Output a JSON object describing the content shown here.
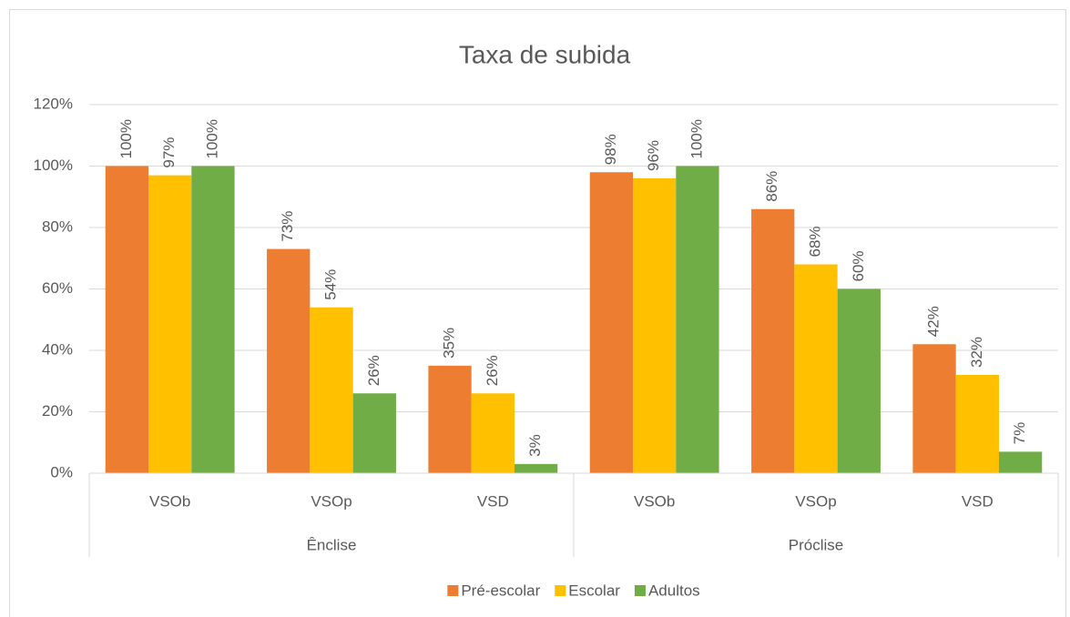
{
  "chart_data": {
    "type": "bar",
    "title": "Taxa de subida",
    "categories": [
      "VSOb",
      "VSOp",
      "VSD",
      "VSOb",
      "VSOp",
      "VSD"
    ],
    "groups": [
      "Ênclise",
      "Próclise"
    ],
    "series": [
      {
        "name": "Pré-escolar",
        "color": "#ED7D31",
        "values": [
          100,
          73,
          35,
          98,
          86,
          42
        ],
        "value_labels": [
          "100%",
          "73%",
          "35%",
          "98%",
          "86%",
          "42%"
        ]
      },
      {
        "name": "Escolar",
        "color": "#FFC000",
        "values": [
          97,
          54,
          26,
          96,
          68,
          32
        ],
        "value_labels": [
          "97%",
          "54%",
          "26%",
          "96%",
          "68%",
          "32%"
        ]
      },
      {
        "name": "Adultos",
        "color": "#70AD47",
        "values": [
          100,
          26,
          3,
          100,
          60,
          7
        ],
        "value_labels": [
          "100%",
          "26%",
          "3%",
          "100%",
          "60%",
          "7%"
        ]
      }
    ],
    "ylim": [
      0,
      120
    ],
    "yticks": [
      {
        "value": 0,
        "label": "0%"
      },
      {
        "value": 20,
        "label": "20%"
      },
      {
        "value": 40,
        "label": "40%"
      },
      {
        "value": 60,
        "label": "60%"
      },
      {
        "value": 80,
        "label": "80%"
      },
      {
        "value": 100,
        "label": "100%"
      },
      {
        "value": 120,
        "label": "120%"
      }
    ],
    "grid": true,
    "legend": "bottom"
  }
}
